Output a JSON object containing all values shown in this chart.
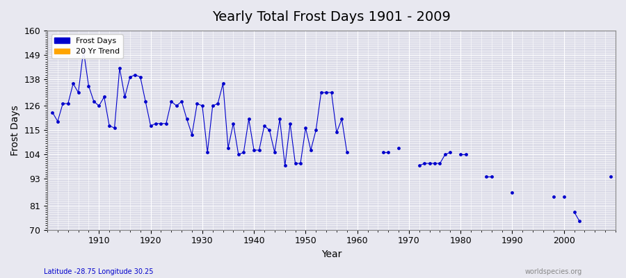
{
  "title": "Yearly Total Frost Days 1901 - 2009",
  "xlabel": "Year",
  "ylabel": "Frost Days",
  "subtitle": "Latitude -28.75 Longitude 30.25",
  "watermark": "worldspecies.org",
  "ylim": [
    70,
    160
  ],
  "yticks": [
    70,
    81,
    93,
    104,
    115,
    126,
    138,
    149,
    160
  ],
  "xlim": [
    1900,
    2010
  ],
  "xticks": [
    1910,
    1920,
    1930,
    1940,
    1950,
    1960,
    1970,
    1980,
    1990,
    2000
  ],
  "line_color": "#0000cc",
  "bg_color": "#e8e8f0",
  "plot_bg": "#dcdce8",
  "grid_color": "#ffffff",
  "legend_items": [
    "Frost Days",
    "20 Yr Trend"
  ],
  "legend_colors": [
    "#0000cc",
    "#ffa500"
  ],
  "years": [
    1901,
    1902,
    1903,
    1904,
    1905,
    1906,
    1907,
    1908,
    1909,
    1910,
    1911,
    1912,
    1913,
    1914,
    1915,
    1916,
    1917,
    1918,
    1919,
    1920,
    1921,
    1922,
    1923,
    1924,
    1925,
    1926,
    1927,
    1928,
    1929,
    1930,
    1931,
    1932,
    1933,
    1934,
    1935,
    1936,
    1937,
    1938,
    1939,
    1940,
    1941,
    1942,
    1943,
    1944,
    1945,
    1946,
    1947,
    1948,
    1949,
    1950,
    1951,
    1952,
    1953,
    1954,
    1955,
    1956,
    1957,
    1958,
    1959,
    1960,
    1961,
    1962,
    1963,
    1964,
    1965,
    1966,
    1967,
    1968,
    1969,
    1970,
    1971,
    1972,
    1973,
    1974,
    1975,
    1976,
    1977,
    1978,
    1979,
    1980,
    1981,
    1982,
    1983,
    1984,
    1985,
    1986,
    1987,
    1988,
    1989,
    1990,
    1991,
    1992,
    1993,
    1994,
    1995,
    1996,
    1997,
    1998,
    1999,
    2000,
    2001,
    2002,
    2003,
    2004,
    2005,
    2006,
    2007,
    2008,
    2009
  ],
  "frost_days": [
    123,
    119,
    127,
    127,
    136,
    132,
    151,
    135,
    128,
    126,
    130,
    117,
    116,
    143,
    130,
    139,
    140,
    139,
    128,
    117,
    118,
    118,
    118,
    128,
    126,
    128,
    120,
    113,
    127,
    126,
    105,
    126,
    127,
    136,
    107,
    118,
    104,
    105,
    120,
    106,
    106,
    117,
    115,
    105,
    120,
    99,
    118,
    100,
    100,
    116,
    106,
    115,
    132,
    132,
    132,
    114,
    120,
    105,
    null,
    null,
    null,
    null,
    null,
    null,
    105,
    105,
    null,
    107,
    null,
    null,
    null,
    99,
    100,
    100,
    100,
    100,
    104,
    105,
    null,
    104,
    104,
    null,
    null,
    null,
    94,
    94,
    null,
    null,
    null,
    87,
    null,
    null,
    null,
    null,
    null,
    null,
    null,
    85,
    null,
    85,
    null,
    78,
    74,
    null,
    null,
    null,
    null,
    null,
    94
  ]
}
